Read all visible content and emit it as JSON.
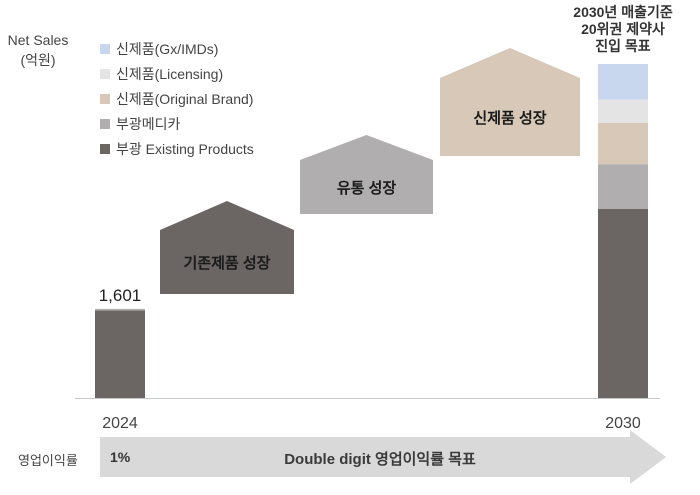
{
  "chart_data": {
    "type": "bar",
    "stacked": true,
    "ylabel": "Net Sales\n(억원)",
    "categories": [
      "2024",
      "2030"
    ],
    "series": [
      {
        "name": "부광 Existing Products",
        "color": "#6b6563",
        "values": [
          1571,
          3400
        ]
      },
      {
        "name": "부광메디카",
        "color": "#b0aeae",
        "values": [
          30,
          800
        ]
      },
      {
        "name": "신제품(Original Brand)",
        "color": "#d7c8b7",
        "values": [
          0,
          740
        ]
      },
      {
        "name": "신제품(Licensing)",
        "color": "#e4e4e4",
        "values": [
          0,
          420
        ]
      },
      {
        "name": "신제품(Gx/IMDs)",
        "color": "#c9d7ee",
        "values": [
          0,
          640
        ]
      }
    ],
    "data_labels": {
      "2024": "1,601"
    },
    "ylim": [
      0,
      6000
    ],
    "legend_position": "top-left",
    "grid": false
  },
  "target_label": "2030년 매출기준\n20위권 제약사\n진입 목표",
  "growth_steps": [
    {
      "label": "기존제품 성장",
      "color": "#6b6563",
      "text_color": "#1a1a1a"
    },
    {
      "label": "유통 성장",
      "color": "#b0aeae",
      "text_color": "#1a1a1a"
    },
    {
      "label": "신제품 성장",
      "color": "#d7c8b7",
      "text_color": "#1a1a1a"
    }
  ],
  "operating_margin": {
    "label": "영업이익률",
    "current_value": "1%",
    "goal": "Double digit 영업이익률 목표",
    "arrow_color": "#d9d9d9"
  }
}
